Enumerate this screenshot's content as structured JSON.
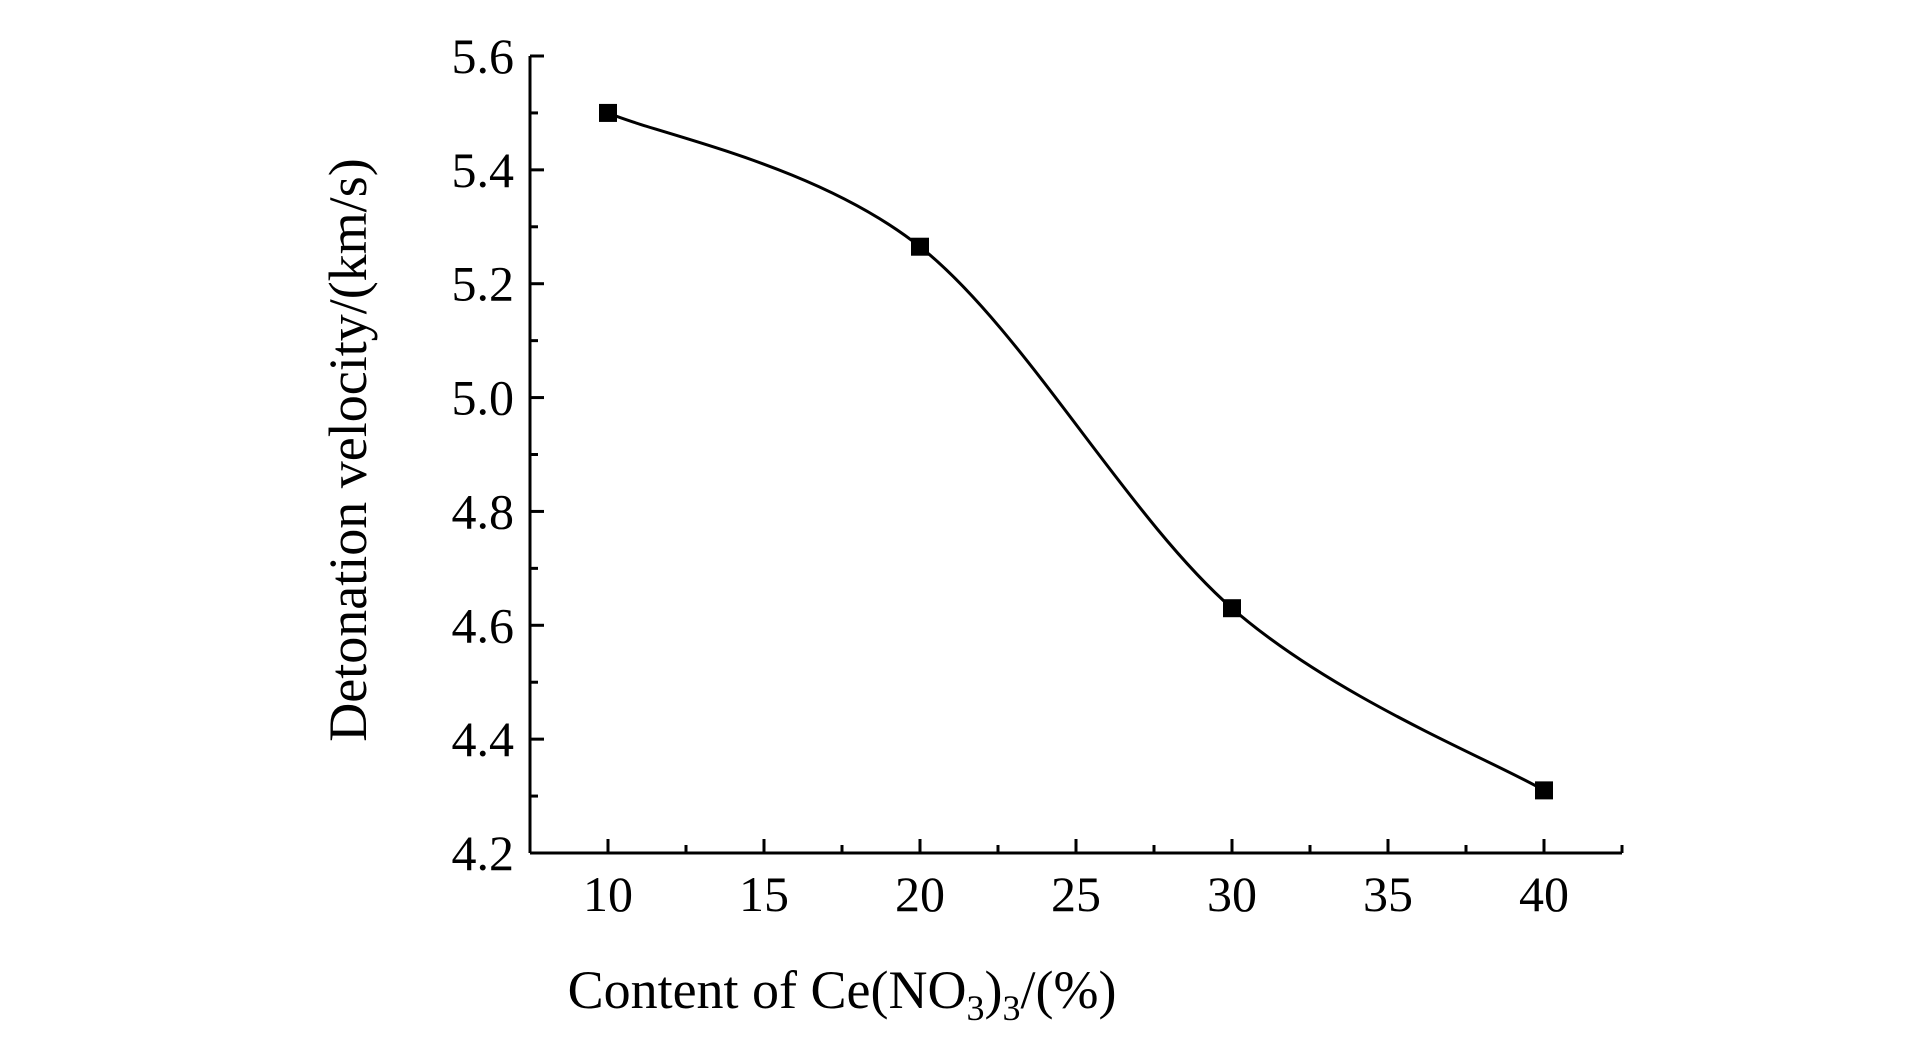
{
  "chart_data": {
    "type": "scatter",
    "title": "",
    "xlabel": {
      "main": "Content of Ce(NO",
      "sub1": "3",
      "close": ")",
      "sub2": "3",
      "tail": "/(%)"
    },
    "ylabel": "Detonation velocity/(km/s)",
    "xlim": [
      7.5,
      42.5
    ],
    "ylim": [
      4.2,
      5.6
    ],
    "x_ticks": [
      10,
      15,
      20,
      25,
      30,
      35,
      40
    ],
    "x_tick_labels": [
      "10",
      "15",
      "20",
      "25",
      "30",
      "35",
      "40"
    ],
    "y_ticks": [
      4.2,
      4.4,
      4.6,
      4.8,
      5.0,
      5.2,
      5.4,
      5.6
    ],
    "y_tick_labels": [
      "4.2",
      "4.4",
      "4.6",
      "4.8",
      "5.0",
      "5.2",
      "5.4",
      "5.6"
    ],
    "grid": false,
    "legend": "none",
    "fit_curve": "smooth",
    "series": [
      {
        "x": [
          10,
          20,
          30,
          40
        ],
        "y": [
          5.5,
          5.265,
          4.63,
          4.31
        ],
        "marker": "square",
        "color": "#000000"
      }
    ]
  }
}
